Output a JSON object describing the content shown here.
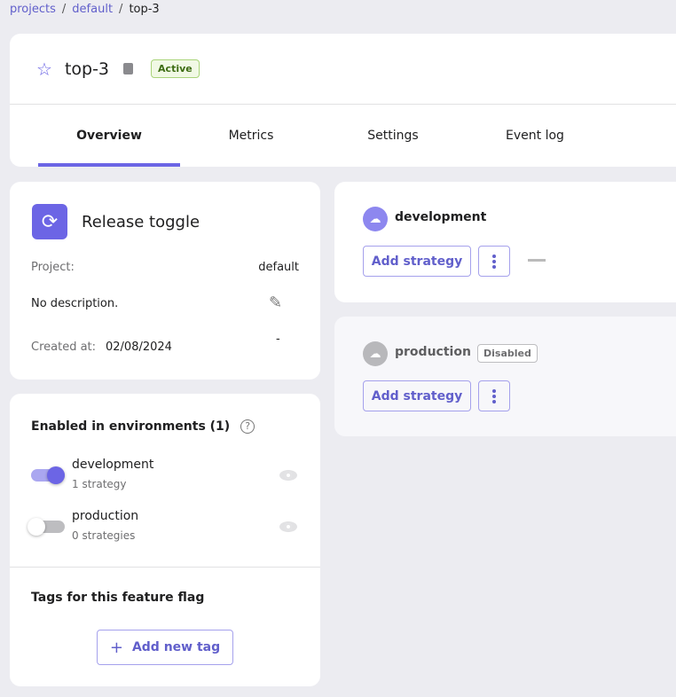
{
  "breadcrumb": [
    "projects",
    "default",
    "top-3"
  ],
  "header": {
    "title": "top-3",
    "status": "Active",
    "tabs": [
      "Overview",
      "Metrics",
      "Settings",
      "Event log"
    ],
    "active_tab": "Overview"
  },
  "info": {
    "type": "Release toggle",
    "project_label": "Project:",
    "project": "default",
    "description": "No description.",
    "created_label": "Created at:",
    "created": "02/08/2024",
    "dash": "-"
  },
  "environments": {
    "title": "Enabled in environments (1)",
    "help": "?",
    "items": [
      {
        "name": "development",
        "strategies": "1 strategy",
        "enabled": true
      },
      {
        "name": "production",
        "strategies": "0 strategies",
        "enabled": false
      }
    ]
  },
  "tags": {
    "title": "Tags for this feature flag",
    "add_label": "Add new tag",
    "add_icon": "+"
  },
  "env_cards": [
    {
      "name": "development",
      "add_label": "Add strategy"
    },
    {
      "name": "production",
      "badge": "Disabled",
      "add_label": "Add strategy"
    }
  ],
  "colors": {
    "accent": "#6c65e5",
    "background": "#ececf1",
    "active_badge": "#3e6d14"
  }
}
